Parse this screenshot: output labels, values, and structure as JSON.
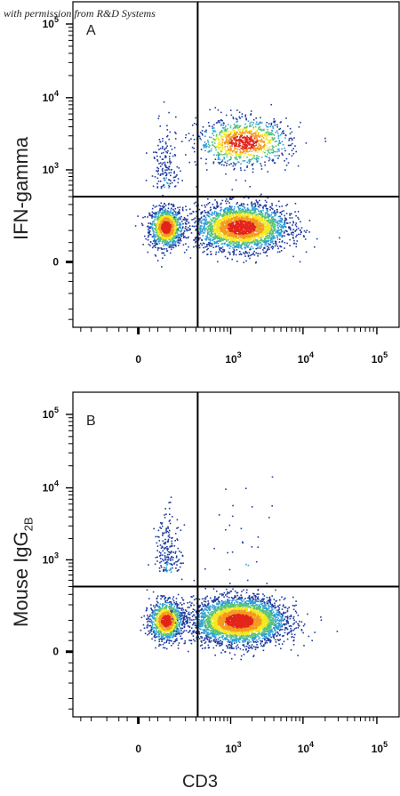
{
  "credit_note": "with permission from R&D Systems",
  "x_axis_label": "CD3",
  "colors": {
    "low": "#1f3a9e",
    "mid": "#2f9fd6",
    "high": "#f5e81c",
    "peak": "#e3241b"
  },
  "chart_data": [
    {
      "type": "scatter",
      "panel_label": "A",
      "ylabel": "IFN-gamma",
      "xlabel": "CD3",
      "x_scale": "biexponential",
      "y_scale": "biexponential",
      "x_tick_labels": [
        "0",
        "10^3",
        "10^4",
        "10^5"
      ],
      "y_tick_labels": [
        "0",
        "10^3",
        "10^4",
        "10^5"
      ],
      "gate": {
        "x": 320,
        "y": 400
      },
      "populations": [
        {
          "name": "CD3- IFN-gamma-",
          "x_center": 80,
          "y_center": 120,
          "spread": "tight",
          "share": 0.22
        },
        {
          "name": "CD3+ IFN-gamma-",
          "x_center": 1400,
          "y_center": 120,
          "spread": "wide",
          "share": 0.55
        },
        {
          "name": "CD3+ IFN-gamma+",
          "x_center": 1500,
          "y_center": 2500,
          "spread": "wide",
          "share": 0.2
        },
        {
          "name": "CD3- IFN-gamma+",
          "x_center": 80,
          "y_center": 1000,
          "spread": "narrow",
          "share": 0.03
        }
      ]
    },
    {
      "type": "scatter",
      "panel_label": "B",
      "ylabel": "Mouse IgG2B",
      "ylabel_main": "Mouse IgG",
      "ylabel_sub": "2B",
      "xlabel": "CD3",
      "x_scale": "biexponential",
      "y_scale": "biexponential",
      "x_tick_labels": [
        "0",
        "10^3",
        "10^4",
        "10^5"
      ],
      "y_tick_labels": [
        "0",
        "10^3",
        "10^4",
        "10^5"
      ],
      "gate": {
        "x": 320,
        "y": 400
      },
      "populations": [
        {
          "name": "CD3- IgG2B-",
          "x_center": 80,
          "y_center": 100,
          "spread": "tight",
          "share": 0.22
        },
        {
          "name": "CD3+ IgG2B-",
          "x_center": 1300,
          "y_center": 100,
          "spread": "wide",
          "share": 0.74
        },
        {
          "name": "CD3- IgG2B+",
          "x_center": 90,
          "y_center": 1200,
          "spread": "narrow",
          "share": 0.035
        },
        {
          "name": "CD3+ IgG2B+",
          "x_center": 1500,
          "y_center": 1500,
          "spread": "sparse",
          "share": 0.005
        }
      ]
    }
  ]
}
